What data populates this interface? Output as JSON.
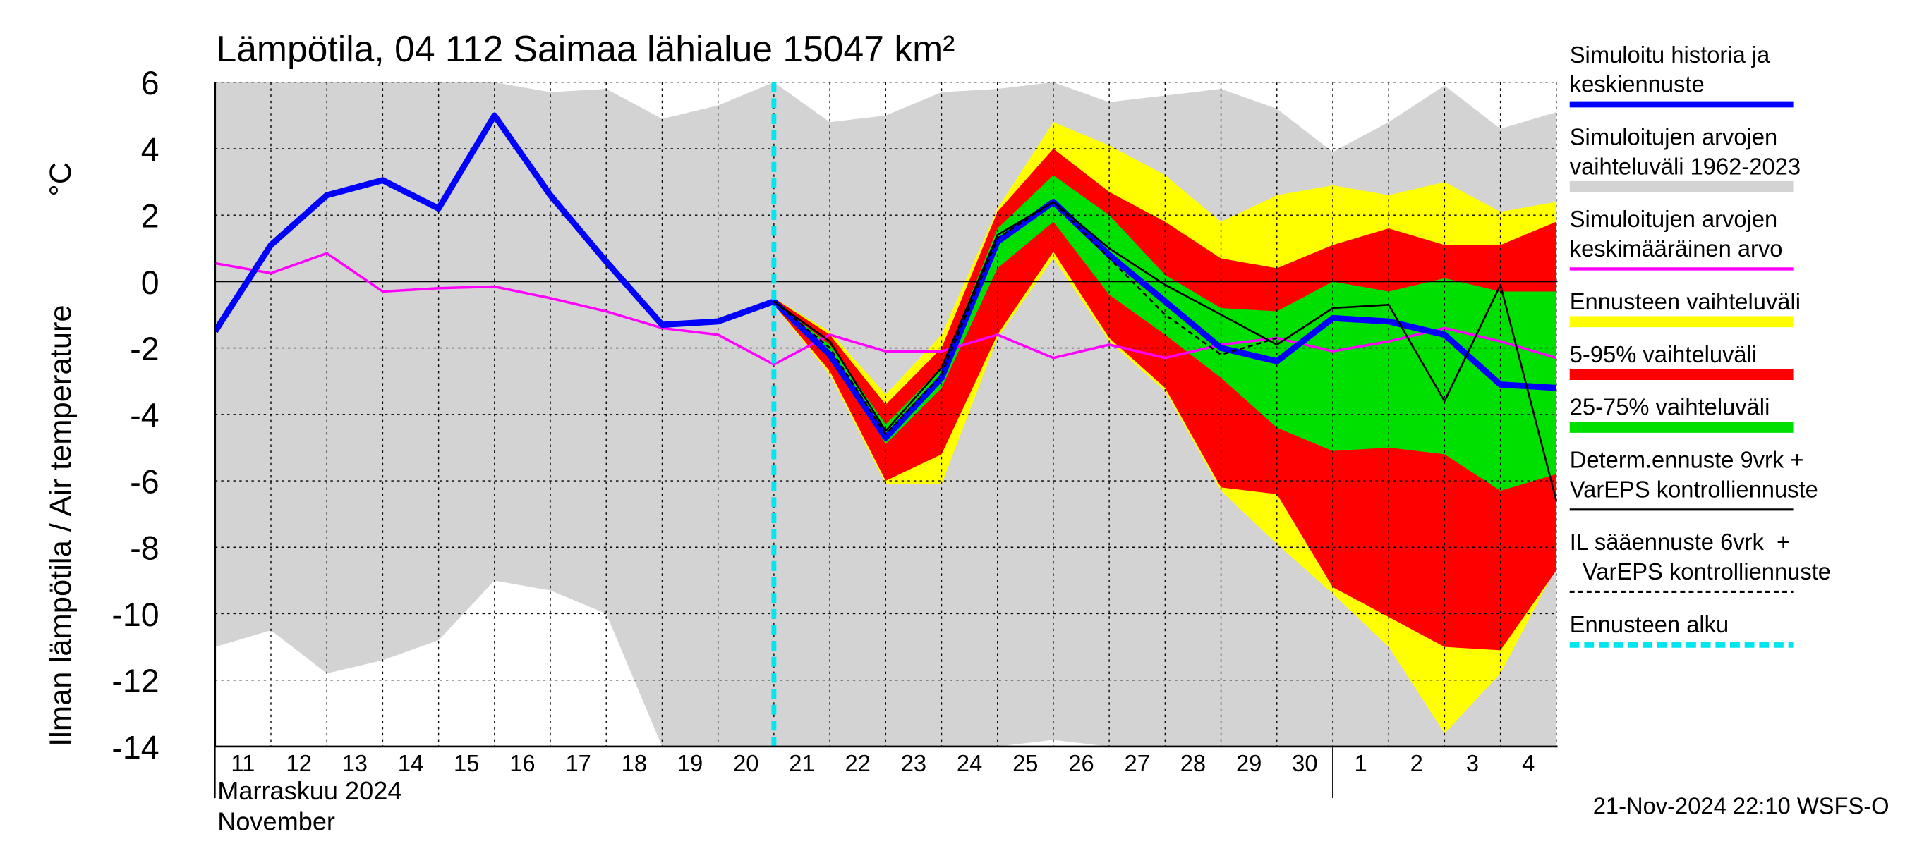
{
  "chart_data": {
    "type": "line",
    "title": "Lämpötila, 04 112 Saimaa lähialue 15047 km²",
    "ylabel": "Ilman lämpötila / Air temperature",
    "yunit": "°C",
    "xlabel": [
      "Marraskuu 2024",
      "November"
    ],
    "timestamp": "21-Nov-2024 22:10 WSFS-O",
    "categories": [
      "11",
      "12",
      "13",
      "14",
      "15",
      "16",
      "17",
      "18",
      "19",
      "20",
      "21",
      "22",
      "23",
      "24",
      "25",
      "26",
      "27",
      "28",
      "29",
      "30",
      "1",
      "2",
      "3",
      "4",
      null
    ],
    "ylim": [
      -14,
      6
    ],
    "yticks": [
      -14,
      -12,
      -10,
      -8,
      -6,
      -4,
      -2,
      0,
      2,
      4,
      6
    ],
    "grid": true,
    "series": [
      {
        "name": [
          "Simuloitu historia ja",
          "keskiennuste"
        ],
        "color": "#0000ff",
        "kind": "line",
        "style": "thick",
        "values": [
          -1.5,
          1.1,
          2.6,
          3.05,
          2.2,
          5.0,
          2.6,
          0.6,
          -1.3,
          -1.2,
          -0.6,
          -2.2,
          -4.7,
          -2.9,
          1.2,
          2.4,
          0.8,
          -0.6,
          -2.0,
          -2.4,
          -1.1,
          -1.2,
          -1.6,
          -3.1,
          -3.2
        ]
      },
      {
        "name": [
          "Simuloitujen arvojen",
          "vaihteluväli 1962-2023"
        ],
        "color": "#d3d3d3",
        "kind": "band",
        "upper": [
          6,
          6,
          6,
          6,
          6,
          6,
          5.7,
          5.8,
          4.9,
          5.3,
          6,
          4.8,
          5.0,
          5.7,
          5.8,
          6,
          5.4,
          5.6,
          5.8,
          5.2,
          3.9,
          4.8,
          5.9,
          4.6,
          5.1
        ],
        "lower": [
          -11.0,
          -10.5,
          -11.8,
          -11.4,
          -10.8,
          -9.0,
          -9.3,
          -10.0,
          -14,
          -14,
          -14,
          -14,
          -14,
          -14,
          -14,
          -13.8,
          -14,
          -14,
          -14,
          -14,
          -14,
          -14,
          -14,
          -14,
          -14
        ]
      },
      {
        "name": [
          "Simuloitujen arvojen",
          "keskimääräinen arvo"
        ],
        "color": "#ff00ff",
        "kind": "line",
        "style": "mid",
        "values": [
          0.55,
          0.25,
          0.85,
          -0.3,
          -0.2,
          -0.15,
          -0.5,
          -0.9,
          -1.4,
          -1.6,
          -2.5,
          -1.6,
          -2.1,
          -2.1,
          -1.6,
          -2.3,
          -1.9,
          -2.3,
          -1.9,
          -1.7,
          -2.1,
          -1.8,
          -1.4,
          -1.8,
          -2.3
        ]
      },
      {
        "name": [
          "Ennusteen vaihteluväli"
        ],
        "color": "#ffff00",
        "kind": "band",
        "upper": [
          null,
          null,
          null,
          null,
          null,
          null,
          null,
          null,
          null,
          null,
          -0.5,
          -1.5,
          -3.4,
          -1.6,
          2.2,
          4.8,
          4.1,
          3.2,
          1.8,
          2.6,
          2.9,
          2.6,
          3.0,
          2.1,
          2.4
        ],
        "lower": [
          null,
          null,
          null,
          null,
          null,
          null,
          null,
          null,
          null,
          null,
          -0.7,
          -2.8,
          -6.1,
          -6.1,
          -1.7,
          0.7,
          -1.8,
          -3.3,
          -6.3,
          -7.9,
          -9.4,
          -11.0,
          -13.6,
          -11.8,
          -8.6
        ]
      },
      {
        "name": [
          "5-95% vaihteluväli"
        ],
        "color": "#ff0000",
        "kind": "band",
        "upper": [
          null,
          null,
          null,
          null,
          null,
          null,
          null,
          null,
          null,
          null,
          -0.5,
          -1.6,
          -3.7,
          -2.0,
          2.1,
          4.0,
          2.7,
          1.8,
          0.7,
          0.4,
          1.1,
          1.6,
          1.1,
          1.1,
          1.8
        ],
        "lower": [
          null,
          null,
          null,
          null,
          null,
          null,
          null,
          null,
          null,
          null,
          -0.7,
          -2.7,
          -6.0,
          -5.2,
          -1.6,
          0.9,
          -1.7,
          -3.2,
          -6.2,
          -6.4,
          -9.2,
          -10.1,
          -11.0,
          -11.1,
          -8.7
        ]
      },
      {
        "name": [
          "25-75% vaihteluväli"
        ],
        "color": "#00e000",
        "kind": "band",
        "upper": [
          null,
          null,
          null,
          null,
          null,
          null,
          null,
          null,
          null,
          null,
          -0.6,
          -1.9,
          -4.3,
          -2.6,
          1.6,
          3.2,
          2.0,
          0.2,
          -0.8,
          -0.9,
          0.0,
          -0.3,
          0.1,
          -0.3,
          -0.3
        ],
        "lower": [
          null,
          null,
          null,
          null,
          null,
          null,
          null,
          null,
          null,
          null,
          -0.6,
          -2.1,
          -4.9,
          -3.2,
          0.4,
          1.8,
          -0.4,
          -1.6,
          -2.9,
          -4.4,
          -5.1,
          -5.0,
          -5.2,
          -6.3,
          -5.8
        ]
      },
      {
        "name": [
          "Determ.ennuste 9vrk +",
          "VarEPS kontrolliennuste"
        ],
        "color": "#000000",
        "kind": "line",
        "style": "thin",
        "values": [
          null,
          null,
          null,
          null,
          null,
          null,
          null,
          null,
          null,
          null,
          -0.6,
          -1.8,
          -4.5,
          -2.6,
          1.4,
          2.4,
          1.0,
          -0.1,
          -1.0,
          -1.9,
          -0.8,
          -0.7,
          -3.6,
          -0.1,
          -6.6
        ]
      },
      {
        "name": [
          "IL sääennuste 6vrk  +",
          "  VarEPS kontrolliennuste"
        ],
        "color": "#000000",
        "kind": "line",
        "style": "dashed",
        "values": [
          null,
          null,
          null,
          null,
          null,
          null,
          null,
          null,
          null,
          null,
          -0.6,
          -2.0,
          -4.6,
          -2.8,
          1.3,
          2.4,
          0.7,
          -1.0,
          -2.2,
          -1.7,
          null,
          null,
          null,
          null,
          null
        ]
      },
      {
        "name": [
          "Ennusteen alku"
        ],
        "color": "#00e5ee",
        "kind": "vline",
        "at": 10
      }
    ]
  }
}
